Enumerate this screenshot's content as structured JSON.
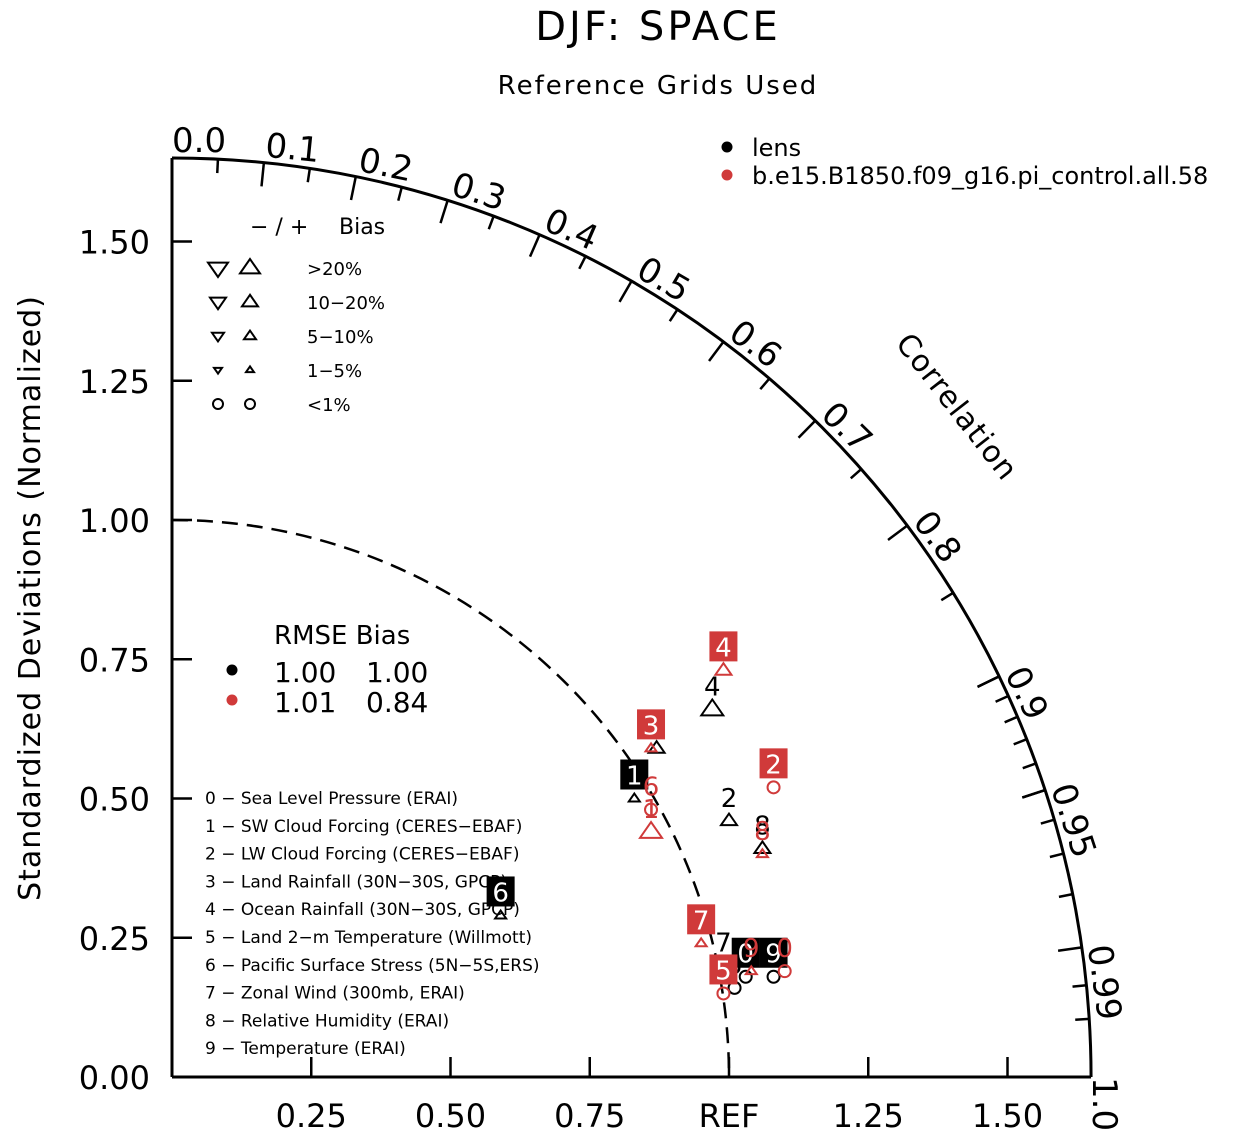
{
  "chart_data": {
    "type": "taylor",
    "title": "DJF: SPACE",
    "subtitle": "Reference Grids Used",
    "ylabel": "Standardized Deviations (Normalized)",
    "correlation_label": "Correlation",
    "ylim": [
      0,
      1.65
    ],
    "y_ticks": [
      "0.00",
      "0.25",
      "0.50",
      "0.75",
      "1.00",
      "1.25",
      "1.50"
    ],
    "x_ticks": [
      {
        "value": 0.25,
        "label": "0.25"
      },
      {
        "value": 0.5,
        "label": "0.50"
      },
      {
        "value": 0.75,
        "label": "0.75"
      },
      {
        "value": 1.0,
        "label": "REF"
      },
      {
        "value": 1.25,
        "label": "1.25"
      },
      {
        "value": 1.5,
        "label": "1.50"
      }
    ],
    "correlation_ticks": [
      {
        "value": 0.0,
        "label": "0.0"
      },
      {
        "value": 0.1,
        "label": "0.1"
      },
      {
        "value": 0.2,
        "label": "0.2"
      },
      {
        "value": 0.3,
        "label": "0.3"
      },
      {
        "value": 0.4,
        "label": "0.4"
      },
      {
        "value": 0.5,
        "label": "0.5"
      },
      {
        "value": 0.6,
        "label": "0.6"
      },
      {
        "value": 0.7,
        "label": "0.7"
      },
      {
        "value": 0.8,
        "label": "0.8"
      },
      {
        "value": 0.9,
        "label": "0.9"
      },
      {
        "value": 0.95,
        "label": "0.95"
      },
      {
        "value": 0.99,
        "label": "0.99"
      },
      {
        "value": 1.0,
        "label": "1.0"
      }
    ],
    "series": [
      {
        "name": "lens",
        "color": "#000000",
        "rmse": "1.00",
        "bias": "1.00",
        "points": [
          {
            "id": "0",
            "x": 1.03,
            "y": 0.18,
            "marker": "circle",
            "boxed": true
          },
          {
            "id": "1",
            "x": 0.83,
            "y": 0.5,
            "marker": "up-small",
            "boxed": true
          },
          {
            "id": "2",
            "x": 1.0,
            "y": 0.46,
            "marker": "up-medium",
            "boxed": false
          },
          {
            "id": "3",
            "x": 0.87,
            "y": 0.59,
            "marker": "up-medium",
            "boxed": false
          },
          {
            "id": "4",
            "x": 0.97,
            "y": 0.66,
            "marker": "up-large",
            "boxed": false
          },
          {
            "id": "5",
            "x": 1.01,
            "y": 0.16,
            "marker": "circle",
            "boxed": false
          },
          {
            "id": "6",
            "x": 0.59,
            "y": 0.29,
            "marker": "up-small",
            "boxed": true
          },
          {
            "id": "7",
            "x": 0.99,
            "y": 0.2,
            "marker": "up-small",
            "boxed": false
          },
          {
            "id": "8",
            "x": 1.06,
            "y": 0.41,
            "marker": "up-medium",
            "boxed": false
          },
          {
            "id": "9",
            "x": 1.08,
            "y": 0.18,
            "marker": "circle",
            "boxed": true
          }
        ]
      },
      {
        "name": "b.e15.B1850.f09_g16.pi_control.all.58",
        "color": "#d03a3a",
        "rmse": "1.01",
        "bias": "0.84",
        "points": [
          {
            "id": "0",
            "x": 1.1,
            "y": 0.19,
            "marker": "circle",
            "boxed": false
          },
          {
            "id": "1",
            "x": 0.86,
            "y": 0.44,
            "marker": "up-large",
            "boxed": false
          },
          {
            "id": "2",
            "x": 1.08,
            "y": 0.52,
            "marker": "circle",
            "boxed": true
          },
          {
            "id": "3",
            "x": 0.86,
            "y": 0.59,
            "marker": "up-small",
            "boxed": true
          },
          {
            "id": "4",
            "x": 0.99,
            "y": 0.73,
            "marker": "up-medium",
            "boxed": true
          },
          {
            "id": "5",
            "x": 0.99,
            "y": 0.15,
            "marker": "circle",
            "boxed": true
          },
          {
            "id": "6",
            "x": 0.86,
            "y": 0.48,
            "marker": "circle",
            "boxed": false
          },
          {
            "id": "7",
            "x": 0.95,
            "y": 0.24,
            "marker": "up-small",
            "boxed": true
          },
          {
            "id": "8",
            "x": 1.06,
            "y": 0.4,
            "marker": "up-small",
            "boxed": false
          },
          {
            "id": "9",
            "x": 1.04,
            "y": 0.19,
            "marker": "up-small",
            "boxed": false
          }
        ]
      }
    ],
    "bias_legend": {
      "header_sign": "−  /  +",
      "header_bias": "Bias",
      "rows": [
        {
          "label": ">20%",
          "marker": "large"
        },
        {
          "label": "10−20%",
          "marker": "medium"
        },
        {
          "label": "5−10%",
          "marker": "small"
        },
        {
          "label": "1−5%",
          "marker": "tiny"
        },
        {
          "label": "<1%",
          "marker": "circle"
        }
      ]
    },
    "rmse_legend": {
      "header": "RMSE Bias"
    },
    "variable_list": [
      "0 − Sea Level Pressure (ERAI)",
      "1 − SW Cloud Forcing (CERES−EBAF)",
      "2 − LW Cloud Forcing (CERES−EBAF)",
      "3 − Land Rainfall (30N−30S, GPCP)",
      "4 − Ocean Rainfall (30N−30S, GPCP)",
      "5 − Land 2−m Temperature (Willmott)",
      "6 − Pacific Surface Stress (5N−5S,ERS)",
      "7 − Zonal Wind (300mb, ERAI)",
      "8 − Relative Humidity (ERAI)",
      "9 − Temperature (ERAI)"
    ]
  }
}
